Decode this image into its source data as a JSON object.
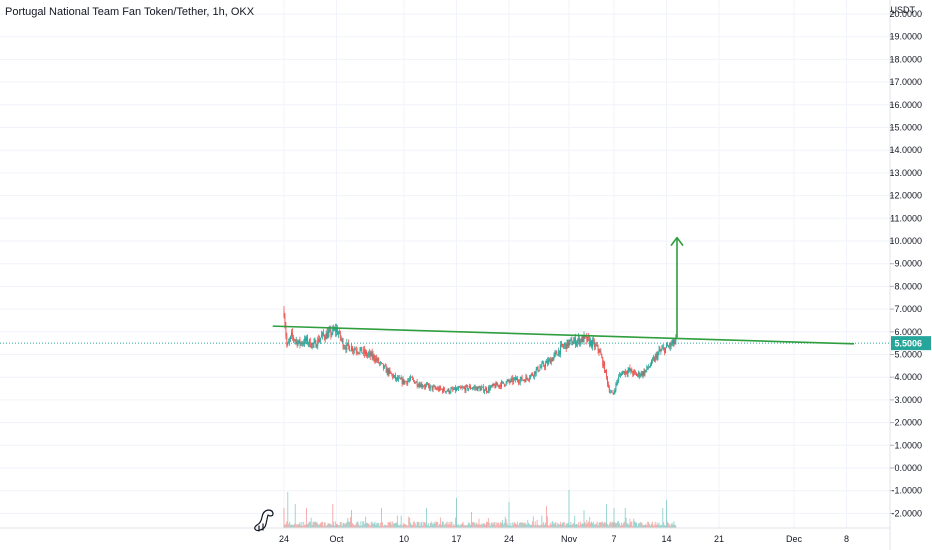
{
  "chart_data": {
    "type": "candlestick",
    "title": "Portugal National Team Fan Token/Tether, 1h, OKX",
    "currency_label": "USDT",
    "y_ticks": [
      "20.0000",
      "19.0000",
      "18.0000",
      "17.0000",
      "16.0000",
      "15.0000",
      "14.0000",
      "13.0000",
      "12.0000",
      "11.0000",
      "10.0000",
      "9.0000",
      "8.0000",
      "7.0000",
      "6.0000",
      "5.0000",
      "4.0000",
      "3.0000",
      "2.0000",
      "1.0000",
      "0.0000",
      "-1.0000",
      "-2.0000"
    ],
    "ylim": [
      -2.8,
      20.6
    ],
    "x_ticks": [
      {
        "label": "24",
        "day": 0
      },
      {
        "label": "Oct",
        "day": 7
      },
      {
        "label": "10",
        "day": 16
      },
      {
        "label": "17",
        "day": 23
      },
      {
        "label": "24",
        "day": 30
      },
      {
        "label": "Nov",
        "day": 38
      },
      {
        "label": "7",
        "day": 44
      },
      {
        "label": "14",
        "day": 51
      },
      {
        "label": "21",
        "day": 58
      },
      {
        "label": "Dec",
        "day": 68
      },
      {
        "label": "8",
        "day": 75
      }
    ],
    "last_price": "5.5006",
    "last_price_value": 5.5006,
    "price_path": [
      [
        0,
        6.9
      ],
      [
        0.4,
        5.3
      ],
      [
        1,
        5.8
      ],
      [
        2,
        5.5
      ],
      [
        3,
        5.6
      ],
      [
        4,
        5.4
      ],
      [
        5,
        5.8
      ],
      [
        6,
        5.9
      ],
      [
        7,
        6.1
      ],
      [
        8,
        5.4
      ],
      [
        9,
        5.3
      ],
      [
        10,
        5.2
      ],
      [
        11,
        5.0
      ],
      [
        12,
        4.9
      ],
      [
        13,
        4.5
      ],
      [
        14,
        4.2
      ],
      [
        15,
        3.9
      ],
      [
        16,
        3.8
      ],
      [
        17,
        3.9
      ],
      [
        18,
        3.7
      ],
      [
        19,
        3.6
      ],
      [
        20,
        3.5
      ],
      [
        21,
        3.45
      ],
      [
        22,
        3.4
      ],
      [
        23,
        3.45
      ],
      [
        24,
        3.5
      ],
      [
        25,
        3.55
      ],
      [
        26,
        3.5
      ],
      [
        27,
        3.45
      ],
      [
        28,
        3.6
      ],
      [
        29,
        3.7
      ],
      [
        30,
        3.8
      ],
      [
        31,
        3.9
      ],
      [
        32,
        3.9
      ],
      [
        33,
        4.1
      ],
      [
        34,
        4.4
      ],
      [
        35,
        4.6
      ],
      [
        36,
        4.9
      ],
      [
        37,
        5.3
      ],
      [
        38,
        5.5
      ],
      [
        39,
        5.6
      ],
      [
        40,
        5.7
      ],
      [
        41,
        5.5
      ],
      [
        42,
        5.2
      ],
      [
        42.8,
        4.3
      ],
      [
        43.3,
        3.5
      ],
      [
        43.8,
        3.2
      ],
      [
        44.5,
        3.9
      ],
      [
        45,
        4.2
      ],
      [
        46,
        4.3
      ],
      [
        47,
        4.1
      ],
      [
        48,
        4.2
      ],
      [
        49,
        4.6
      ],
      [
        50,
        5.1
      ],
      [
        51,
        5.3
      ],
      [
        52,
        5.5
      ],
      [
        52.3,
        5.7
      ]
    ],
    "trendline": {
      "from": [
        -1.5,
        6.25
      ],
      "to": [
        76,
        5.47
      ]
    },
    "target_arrow": {
      "x": 52.4,
      "from": 5.75,
      "to": 10.15
    },
    "volume_spikes": [
      [
        0,
        0.5
      ],
      [
        0.5,
        0.9
      ],
      [
        1.5,
        0.6
      ],
      [
        3,
        0.5
      ],
      [
        6.5,
        0.6
      ],
      [
        9,
        0.45
      ],
      [
        13,
        0.5
      ],
      [
        19,
        0.5
      ],
      [
        23,
        0.6
      ],
      [
        25,
        0.4
      ],
      [
        30,
        0.5
      ],
      [
        35,
        0.55
      ],
      [
        38,
        0.95
      ],
      [
        40,
        0.45
      ],
      [
        43,
        0.6
      ],
      [
        44,
        0.5
      ],
      [
        45.5,
        0.5
      ],
      [
        50.5,
        0.5
      ],
      [
        51,
        0.7
      ]
    ],
    "colors": {
      "up": "#26a69a",
      "down": "#ef5350",
      "line": "#2e9e3e",
      "grid": "#f0f3fa",
      "price_badge": "#26a69a",
      "price_line": "#26a69a"
    }
  },
  "icons": {
    "watermark": "tradingview-dino-icon"
  }
}
